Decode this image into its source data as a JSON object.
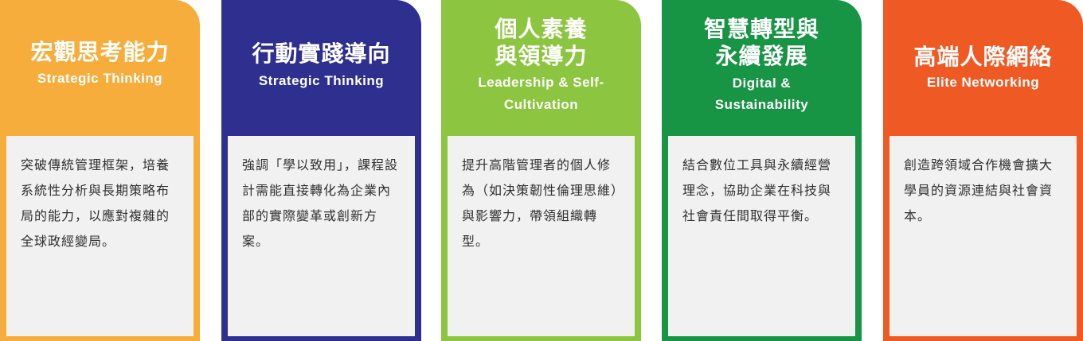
{
  "cards": [
    {
      "color": "#f7ad3b",
      "title": "宏觀思考能力",
      "subtitle": "Strategic Thinking",
      "description": "突破傳統管理框架，培養系統性分析與長期策略布局的能力，以應對複雜的全球政經變局。"
    },
    {
      "color": "#2e2f8f",
      "title": "行動實踐導向",
      "subtitle": "Strategic Thinking",
      "description": "強調「學以致用」，課程設計需能直接轉化為企業內部的實際變革或創新方案。"
    },
    {
      "color": "#8cc53f",
      "title": "個人素養與領導力",
      "subtitle": "Leadership & Self-Cultivation",
      "description": "提升高階管理者的個人修為（如決策韌性倫理思維）與影響力，帶領組織轉型。"
    },
    {
      "color": "#179444",
      "title": "智慧轉型與永續發展",
      "subtitle": "Digital & Sustainability",
      "description": "結合數位工具與永續經營理念，協助企業在科技與社會責任間取得平衡。"
    },
    {
      "color": "#ef5a24",
      "title": "高端人際網絡",
      "subtitle": "Elite Networking",
      "description": "創造跨領域合作機會擴大學員的資源連結與社會資本。"
    }
  ]
}
